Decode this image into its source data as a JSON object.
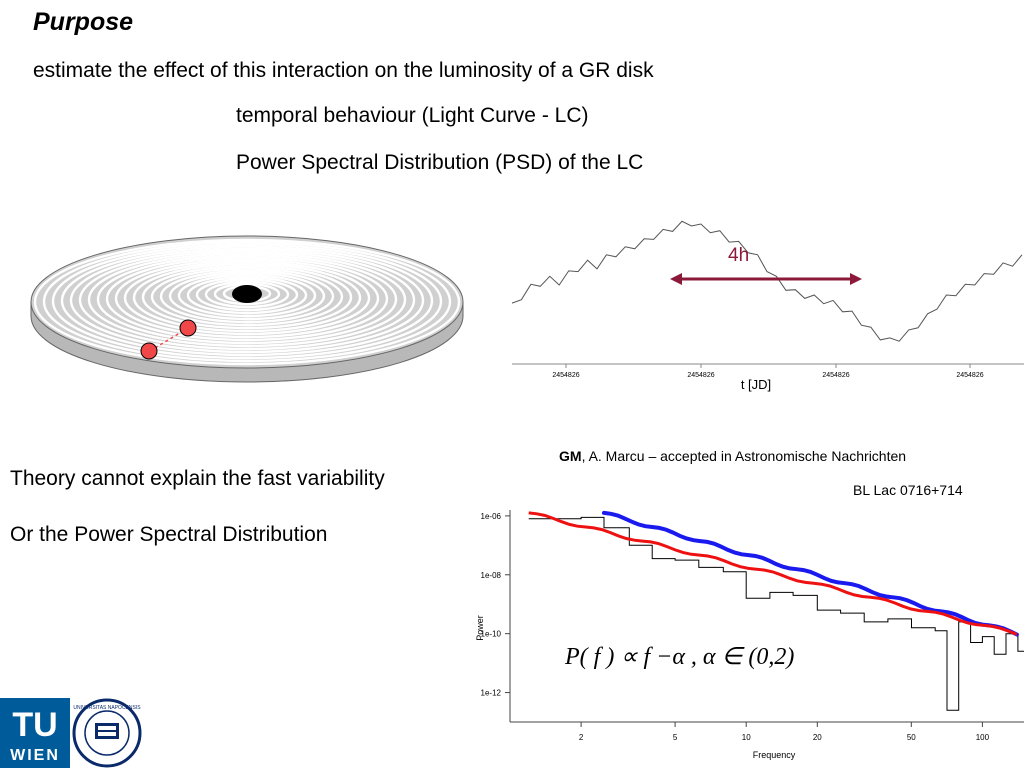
{
  "slide": {
    "title": "Purpose",
    "line1": "estimate the effect of this interaction on the luminosity of a GR disk",
    "line2": "temporal behaviour (Light Curve - LC)",
    "line3": "Power Spectral Distribution (PSD) of the LC",
    "theory": "Theory cannot explain the fast variability",
    "or_psd": "Or the Power Spectral Distribution",
    "citation_author": "GM",
    "citation_rest": ", A. Marcu – accepted in Astronomische Nachrichten",
    "object": "BL Lac 0716+714",
    "formula": "P( f ) ∝ f −α , α ∈ (0,2)"
  },
  "colors": {
    "arrow": "#8b1a3a",
    "blue_fit": "#1a1aee",
    "red_fit": "#ee1111",
    "disk_dot": "#f04848",
    "tu_blue": "#005b9a"
  },
  "logos": {
    "tu_top": "TU",
    "tu_bottom": "WIEN",
    "seal_text": "UNIVERSITAS NAPOCENSIS"
  },
  "chart_data": [
    {
      "type": "line",
      "title": "",
      "xlabel": "t [JD]",
      "ylabel": "",
      "x_tick_labels": [
        "2454826",
        "2454826",
        "2454826",
        "2454826"
      ],
      "annotation": "4h",
      "grid": false,
      "series": [
        {
          "values": [
            0.38,
            0.45,
            0.52,
            0.55,
            0.58,
            0.56,
            0.62,
            0.66,
            0.7,
            0.68,
            0.74,
            0.77,
            0.8,
            0.83,
            0.86,
            0.9,
            0.93,
            0.96,
            0.99,
            1.0,
            0.97,
            0.95,
            0.92,
            0.88,
            0.84,
            0.8,
            0.74,
            0.66,
            0.58,
            0.52,
            0.48,
            0.46,
            0.44,
            0.42,
            0.4,
            0.36,
            0.32,
            0.26,
            0.2,
            0.15,
            0.12,
            0.14,
            0.18,
            0.24,
            0.3,
            0.38,
            0.44,
            0.48,
            0.52,
            0.56,
            0.6,
            0.64,
            0.68,
            0.7,
            0.74
          ]
        }
      ]
    },
    {
      "type": "line",
      "title": "",
      "xlabel": "Frequency",
      "ylabel": "Power",
      "x_scale": "log",
      "y_scale": "log",
      "x_ticks": [
        2,
        5,
        10,
        20,
        50,
        100
      ],
      "y_tick_labels": [
        "1e-06",
        "1e-08",
        "1e-10",
        "1e-12"
      ],
      "grid": false,
      "series": [
        {
          "name": "",
          "style": "step",
          "x": [
            1.2,
            1.6,
            2.0,
            2.5,
            3.2,
            4.0,
            5.0,
            6.3,
            8.0,
            10.0,
            12.6,
            15.8,
            20.0,
            25.1,
            31.6,
            39.8,
            50.1,
            63.1,
            70.8,
            79.4,
            89.1,
            100.0,
            112.2,
            125.9,
            141.3
          ],
          "y": [
            -6.1,
            -6.1,
            -6.05,
            -6.4,
            -7.0,
            -7.45,
            -7.5,
            -7.75,
            -7.9,
            -8.8,
            -8.6,
            -8.7,
            -9.2,
            -9.3,
            -9.6,
            -9.5,
            -9.8,
            -9.9,
            -12.6,
            -9.6,
            -10.3,
            -10.1,
            -10.7,
            -10.0,
            -10.6
          ]
        },
        {
          "name": "",
          "style": "fit",
          "x": [
            2.5,
            140
          ],
          "y": [
            -5.9,
            -10.0
          ]
        },
        {
          "name": "",
          "style": "fit",
          "x": [
            1.2,
            140
          ],
          "y": [
            -5.9,
            -10.0
          ]
        }
      ]
    }
  ]
}
